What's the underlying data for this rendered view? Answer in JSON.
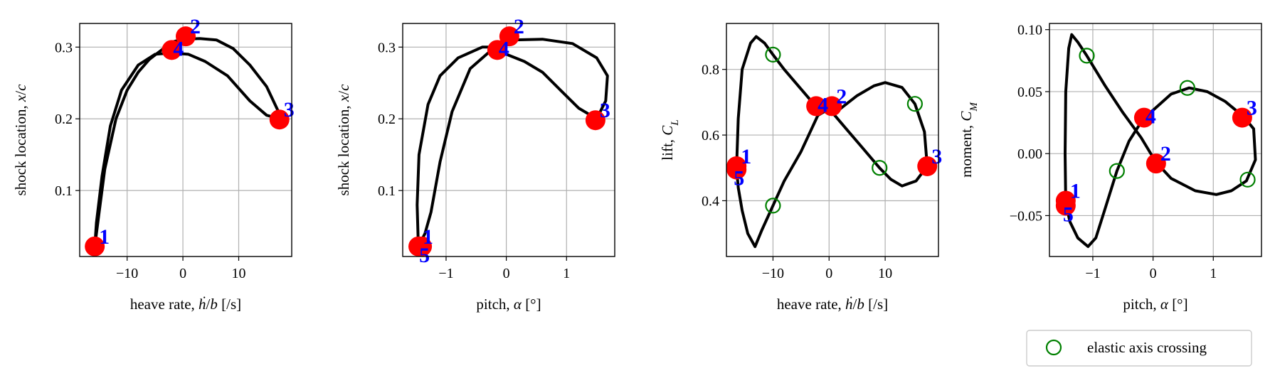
{
  "chart_data": [
    {
      "type": "line",
      "xlabel": "heave rate, ḣ/b [/s]",
      "ylabel": "shock location, x/c",
      "xlim": [
        -18.5,
        19.5
      ],
      "ylim": [
        0.008,
        0.333
      ],
      "xticks": [
        -10,
        0,
        10
      ],
      "xtick_labels": [
        "−10",
        "0",
        "10"
      ],
      "yticks": [
        0.1,
        0.2,
        0.3
      ],
      "ytick_labels": [
        "0.1",
        "0.2",
        "0.3"
      ],
      "grid": true,
      "curve": [
        [
          -15.8,
          0.022
        ],
        [
          -15.0,
          0.07
        ],
        [
          -14.0,
          0.13
        ],
        [
          -12.0,
          0.2
        ],
        [
          -10.0,
          0.24
        ],
        [
          -8.0,
          0.265
        ],
        [
          -6.0,
          0.283
        ],
        [
          -4.0,
          0.295
        ],
        [
          -2.0,
          0.307
        ],
        [
          0.0,
          0.311
        ],
        [
          3.0,
          0.312
        ],
        [
          6.0,
          0.31
        ],
        [
          9.0,
          0.298
        ],
        [
          12.0,
          0.275
        ],
        [
          15.0,
          0.245
        ],
        [
          17.0,
          0.212
        ],
        [
          17.3,
          0.2
        ],
        [
          15.0,
          0.205
        ],
        [
          12.0,
          0.225
        ],
        [
          8.0,
          0.26
        ],
        [
          4.0,
          0.28
        ],
        [
          1.0,
          0.29
        ],
        [
          -2.0,
          0.292
        ],
        [
          -5.0,
          0.29
        ],
        [
          -8.0,
          0.275
        ],
        [
          -11.0,
          0.24
        ],
        [
          -13.0,
          0.19
        ],
        [
          -14.5,
          0.12
        ],
        [
          -15.5,
          0.055
        ],
        [
          -15.8,
          0.022
        ]
      ],
      "markers": [
        {
          "label": "1",
          "x": -15.8,
          "y": 0.022
        },
        {
          "label": "2",
          "x": 0.5,
          "y": 0.315
        },
        {
          "label": "3",
          "x": 17.3,
          "y": 0.199
        },
        {
          "label": "4",
          "x": -2.0,
          "y": 0.296
        }
      ],
      "crossings": []
    },
    {
      "type": "line",
      "xlabel": "pitch, α [°]",
      "ylabel": "shock location, x/c",
      "xlim": [
        -1.72,
        1.8
      ],
      "ylim": [
        0.008,
        0.333
      ],
      "xticks": [
        -1,
        0,
        1
      ],
      "xtick_labels": [
        "−1",
        "0",
        "1"
      ],
      "yticks": [
        0.1,
        0.2,
        0.3
      ],
      "ytick_labels": [
        "0.1",
        "0.2",
        "0.3"
      ],
      "grid": true,
      "curve": [
        [
          -1.46,
          0.022
        ],
        [
          -1.48,
          0.08
        ],
        [
          -1.45,
          0.15
        ],
        [
          -1.3,
          0.22
        ],
        [
          -1.1,
          0.26
        ],
        [
          -0.8,
          0.285
        ],
        [
          -0.4,
          0.3
        ],
        [
          -0.15,
          0.3
        ],
        [
          0.1,
          0.31
        ],
        [
          0.6,
          0.311
        ],
        [
          1.1,
          0.305
        ],
        [
          1.5,
          0.285
        ],
        [
          1.68,
          0.26
        ],
        [
          1.65,
          0.225
        ],
        [
          1.5,
          0.2
        ],
        [
          1.2,
          0.215
        ],
        [
          0.9,
          0.24
        ],
        [
          0.6,
          0.265
        ],
        [
          0.3,
          0.28
        ],
        [
          0.0,
          0.29
        ],
        [
          -0.3,
          0.292
        ],
        [
          -0.6,
          0.27
        ],
        [
          -0.9,
          0.21
        ],
        [
          -1.1,
          0.14
        ],
        [
          -1.25,
          0.07
        ],
        [
          -1.35,
          0.04
        ],
        [
          -1.46,
          0.022
        ]
      ],
      "markers": [
        {
          "label": "1",
          "x": -1.46,
          "y": 0.022
        },
        {
          "label": "2",
          "x": 0.05,
          "y": 0.315
        },
        {
          "label": "3",
          "x": 1.48,
          "y": 0.198
        },
        {
          "label": "4",
          "x": -0.15,
          "y": 0.296
        },
        {
          "label": "5",
          "x": -1.4,
          "y": 0.022
        }
      ],
      "crossings": []
    },
    {
      "type": "line",
      "xlabel": "heave rate, ḣ/b [/s]",
      "ylabel": "lift, C_L",
      "xlim": [
        -18.3,
        19.5
      ],
      "ylim": [
        0.23,
        0.94
      ],
      "xticks": [
        -10,
        0,
        10
      ],
      "xtick_labels": [
        "−10",
        "0",
        "10"
      ],
      "yticks": [
        0.4,
        0.6,
        0.8
      ],
      "ytick_labels": [
        "0.4",
        "0.6",
        "0.8"
      ],
      "grid": true,
      "curve": [
        [
          -16.5,
          0.5
        ],
        [
          -16.2,
          0.65
        ],
        [
          -15.5,
          0.8
        ],
        [
          -14.0,
          0.88
        ],
        [
          -13.0,
          0.9
        ],
        [
          -11.5,
          0.88
        ],
        [
          -10.0,
          0.845
        ],
        [
          -8.0,
          0.8
        ],
        [
          -5.0,
          0.74
        ],
        [
          -2.5,
          0.69
        ],
        [
          0.0,
          0.67
        ],
        [
          2.0,
          0.68
        ],
        [
          5.0,
          0.72
        ],
        [
          8.0,
          0.75
        ],
        [
          10.0,
          0.76
        ],
        [
          13.0,
          0.745
        ],
        [
          15.3,
          0.695
        ],
        [
          17.0,
          0.61
        ],
        [
          17.5,
          0.505
        ],
        [
          15.5,
          0.46
        ],
        [
          13.0,
          0.445
        ],
        [
          11.0,
          0.465
        ],
        [
          9.0,
          0.5
        ],
        [
          6.0,
          0.56
        ],
        [
          3.0,
          0.62
        ],
        [
          0.0,
          0.68
        ],
        [
          -2.0,
          0.66
        ],
        [
          -5.0,
          0.55
        ],
        [
          -8.0,
          0.46
        ],
        [
          -10.0,
          0.385
        ],
        [
          -12.0,
          0.31
        ],
        [
          -13.2,
          0.26
        ],
        [
          -14.5,
          0.3
        ],
        [
          -15.5,
          0.37
        ],
        [
          -16.2,
          0.44
        ],
        [
          -16.5,
          0.5
        ]
      ],
      "markers": [
        {
          "label": "1",
          "x": -16.5,
          "y": 0.505
        },
        {
          "label": "2",
          "x": 0.5,
          "y": 0.688
        },
        {
          "label": "3",
          "x": 17.5,
          "y": 0.505
        },
        {
          "label": "4",
          "x": -2.3,
          "y": 0.688
        },
        {
          "label": "5",
          "x": -16.5,
          "y": 0.495
        }
      ],
      "crossings": [
        [
          -10.0,
          0.845
        ],
        [
          15.3,
          0.695
        ],
        [
          9.0,
          0.5
        ],
        [
          -10.0,
          0.385
        ]
      ]
    },
    {
      "type": "line",
      "xlabel": "pitch, α [°]",
      "ylabel": "moment, C_M",
      "xlim": [
        -1.72,
        1.8
      ],
      "ylim": [
        -0.083,
        0.105
      ],
      "xticks": [
        -1,
        0,
        1
      ],
      "xtick_labels": [
        "−1",
        "0",
        "1"
      ],
      "yticks": [
        -0.05,
        0.0,
        0.05,
        0.1
      ],
      "ytick_labels": [
        "−0.05",
        "0.00",
        "0.05",
        "0.10"
      ],
      "grid": true,
      "curve": [
        [
          -1.45,
          -0.04
        ],
        [
          -1.46,
          0.0
        ],
        [
          -1.45,
          0.05
        ],
        [
          -1.4,
          0.085
        ],
        [
          -1.35,
          0.096
        ],
        [
          -1.25,
          0.09
        ],
        [
          -1.1,
          0.079
        ],
        [
          -0.8,
          0.055
        ],
        [
          -0.5,
          0.033
        ],
        [
          -0.2,
          0.013
        ],
        [
          0.05,
          -0.007
        ],
        [
          0.3,
          -0.02
        ],
        [
          0.7,
          -0.03
        ],
        [
          1.05,
          -0.033
        ],
        [
          1.3,
          -0.03
        ],
        [
          1.55,
          -0.022
        ],
        [
          1.7,
          -0.005
        ],
        [
          1.67,
          0.02
        ],
        [
          1.5,
          0.03
        ],
        [
          1.2,
          0.042
        ],
        [
          0.9,
          0.05
        ],
        [
          0.6,
          0.053
        ],
        [
          0.3,
          0.048
        ],
        [
          0.0,
          0.035
        ],
        [
          -0.15,
          0.029
        ],
        [
          -0.4,
          0.01
        ],
        [
          -0.6,
          -0.014
        ],
        [
          -0.8,
          -0.045
        ],
        [
          -0.95,
          -0.068
        ],
        [
          -1.08,
          -0.075
        ],
        [
          -1.25,
          -0.068
        ],
        [
          -1.38,
          -0.055
        ],
        [
          -1.45,
          -0.04
        ]
      ],
      "markers": [
        {
          "label": "1",
          "x": -1.45,
          "y": -0.038
        },
        {
          "label": "2",
          "x": 0.05,
          "y": -0.008
        },
        {
          "label": "3",
          "x": 1.48,
          "y": 0.029
        },
        {
          "label": "4",
          "x": -0.15,
          "y": 0.029
        },
        {
          "label": "5",
          "x": -1.45,
          "y": -0.042
        }
      ],
      "crossings": [
        [
          -1.1,
          0.079
        ],
        [
          0.57,
          0.053
        ],
        [
          -0.6,
          -0.014
        ],
        [
          1.57,
          -0.021
        ]
      ]
    }
  ],
  "legend": {
    "label": "elastic axis crossing",
    "placement": "below-right"
  },
  "colors": {
    "curve": "#000000",
    "marker": "#ff0000",
    "marker_label": "#0000ff",
    "crossing": "#008000",
    "grid": "#b0b0b0"
  }
}
